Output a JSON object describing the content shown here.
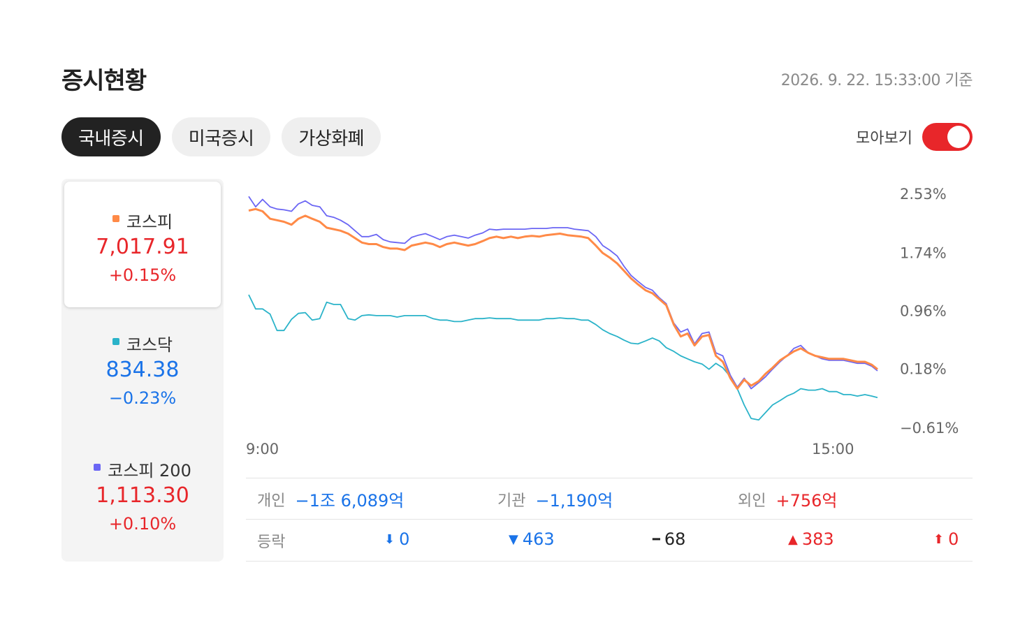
{
  "header": {
    "title": "증시현황",
    "timestamp": "2026. 9. 22. 15:33:00 기준"
  },
  "tabs": [
    {
      "label": "국내증시",
      "active": true
    },
    {
      "label": "미국증시",
      "active": false
    },
    {
      "label": "가상화폐",
      "active": false
    }
  ],
  "toggle": {
    "label": "모아보기",
    "on": true,
    "color": "#e8262a"
  },
  "colors": {
    "up": "#e8262a",
    "down": "#1a73e8",
    "kospi": "#ff8a47",
    "kosdaq": "#2ab3c9",
    "kospi200": "#6b66f4"
  },
  "indices": [
    {
      "name": "코스피",
      "value": "7,017.91",
      "change": "+0.15%",
      "direction": "up",
      "color": "#ff8a47",
      "selected": true
    },
    {
      "name": "코스닥",
      "value": "834.38",
      "change": "−0.23%",
      "direction": "down",
      "color": "#2ab3c9",
      "selected": false
    },
    {
      "name": "코스피 200",
      "value": "1,113.30",
      "change": "+0.10%",
      "direction": "up",
      "color": "#6b66f4",
      "selected": false
    }
  ],
  "investors": [
    {
      "label": "개인",
      "value": "−1조 6,089억",
      "direction": "down"
    },
    {
      "label": "기관",
      "value": "−1,190억",
      "direction": "down"
    },
    {
      "label": "외인",
      "value": "+756억",
      "direction": "up"
    }
  ],
  "advance_decline": {
    "label": "등락",
    "items": [
      {
        "icon": "arrow-down-icon",
        "glyph": "⬇",
        "value": "0",
        "direction": "down"
      },
      {
        "icon": "triangle-down-icon",
        "glyph": "▼",
        "value": "463",
        "direction": "down"
      },
      {
        "icon": "dash-icon",
        "glyph": "━",
        "value": "68",
        "direction": "flat"
      },
      {
        "icon": "triangle-up-icon",
        "glyph": "▲",
        "value": "383",
        "direction": "up"
      },
      {
        "icon": "arrow-up-icon",
        "glyph": "⬆",
        "value": "0",
        "direction": "up"
      }
    ]
  },
  "chart_data": {
    "type": "line",
    "x_ticks": [
      "9:00",
      "15:00"
    ],
    "y_ticks": [
      "2.53%",
      "1.74%",
      "0.96%",
      "0.18%",
      "−0.61%"
    ],
    "y_tick_values": [
      2.53,
      1.74,
      0.96,
      0.18,
      -0.61
    ],
    "ylim": [
      -0.61,
      2.53
    ],
    "xlim": [
      0,
      1
    ],
    "series": [
      {
        "id": "kosdaq",
        "color": "#2ab3c9",
        "points": [
          [
            0,
            1.18
          ],
          [
            0.011,
            0.99
          ],
          [
            0.022,
            0.99
          ],
          [
            0.034,
            0.92
          ],
          [
            0.045,
            0.7
          ],
          [
            0.056,
            0.7
          ],
          [
            0.068,
            0.85
          ],
          [
            0.079,
            0.93
          ],
          [
            0.09,
            0.94
          ],
          [
            0.101,
            0.84
          ],
          [
            0.113,
            0.86
          ],
          [
            0.124,
            1.08
          ],
          [
            0.135,
            1.05
          ],
          [
            0.146,
            1.05
          ],
          [
            0.158,
            0.86
          ],
          [
            0.169,
            0.84
          ],
          [
            0.18,
            0.9
          ],
          [
            0.191,
            0.91
          ],
          [
            0.203,
            0.9
          ],
          [
            0.214,
            0.9
          ],
          [
            0.225,
            0.9
          ],
          [
            0.236,
            0.88
          ],
          [
            0.248,
            0.9
          ],
          [
            0.259,
            0.9
          ],
          [
            0.27,
            0.9
          ],
          [
            0.281,
            0.9
          ],
          [
            0.293,
            0.86
          ],
          [
            0.304,
            0.84
          ],
          [
            0.315,
            0.84
          ],
          [
            0.327,
            0.82
          ],
          [
            0.338,
            0.82
          ],
          [
            0.349,
            0.84
          ],
          [
            0.36,
            0.86
          ],
          [
            0.372,
            0.86
          ],
          [
            0.383,
            0.87
          ],
          [
            0.394,
            0.86
          ],
          [
            0.405,
            0.86
          ],
          [
            0.417,
            0.86
          ],
          [
            0.428,
            0.84
          ],
          [
            0.439,
            0.84
          ],
          [
            0.45,
            0.84
          ],
          [
            0.462,
            0.84
          ],
          [
            0.473,
            0.86
          ],
          [
            0.484,
            0.86
          ],
          [
            0.495,
            0.87
          ],
          [
            0.507,
            0.86
          ],
          [
            0.518,
            0.86
          ],
          [
            0.529,
            0.84
          ],
          [
            0.54,
            0.84
          ],
          [
            0.552,
            0.78
          ],
          [
            0.563,
            0.71
          ],
          [
            0.574,
            0.66
          ],
          [
            0.586,
            0.62
          ],
          [
            0.597,
            0.57
          ],
          [
            0.608,
            0.53
          ],
          [
            0.619,
            0.52
          ],
          [
            0.631,
            0.56
          ],
          [
            0.642,
            0.6
          ],
          [
            0.653,
            0.56
          ],
          [
            0.664,
            0.47
          ],
          [
            0.676,
            0.42
          ],
          [
            0.687,
            0.36
          ],
          [
            0.698,
            0.32
          ],
          [
            0.709,
            0.28
          ],
          [
            0.721,
            0.25
          ],
          [
            0.732,
            0.18
          ],
          [
            0.743,
            0.26
          ],
          [
            0.754,
            0.2
          ],
          [
            0.766,
            0.08
          ],
          [
            0.777,
            -0.08
          ],
          [
            0.788,
            -0.3
          ],
          [
            0.799,
            -0.48
          ],
          [
            0.811,
            -0.5
          ],
          [
            0.822,
            -0.4
          ],
          [
            0.833,
            -0.3
          ],
          [
            0.845,
            -0.24
          ],
          [
            0.856,
            -0.18
          ],
          [
            0.867,
            -0.14
          ],
          [
            0.878,
            -0.08
          ],
          [
            0.89,
            -0.1
          ],
          [
            0.901,
            -0.1
          ],
          [
            0.912,
            -0.08
          ],
          [
            0.923,
            -0.12
          ],
          [
            0.935,
            -0.12
          ],
          [
            0.946,
            -0.16
          ],
          [
            0.957,
            -0.16
          ],
          [
            0.968,
            -0.18
          ],
          [
            0.98,
            -0.16
          ],
          [
            0.991,
            -0.18
          ],
          [
            1.0,
            -0.2
          ]
        ]
      },
      {
        "id": "kospi200",
        "color": "#6b66f4",
        "points": [
          [
            0,
            2.5
          ],
          [
            0.011,
            2.36
          ],
          [
            0.022,
            2.46
          ],
          [
            0.034,
            2.36
          ],
          [
            0.045,
            2.33
          ],
          [
            0.056,
            2.32
          ],
          [
            0.068,
            2.3
          ],
          [
            0.079,
            2.4
          ],
          [
            0.09,
            2.44
          ],
          [
            0.101,
            2.38
          ],
          [
            0.113,
            2.36
          ],
          [
            0.124,
            2.24
          ],
          [
            0.135,
            2.22
          ],
          [
            0.146,
            2.18
          ],
          [
            0.158,
            2.12
          ],
          [
            0.169,
            2.04
          ],
          [
            0.18,
            1.96
          ],
          [
            0.191,
            1.96
          ],
          [
            0.203,
            1.99
          ],
          [
            0.214,
            1.92
          ],
          [
            0.225,
            1.89
          ],
          [
            0.236,
            1.88
          ],
          [
            0.248,
            1.87
          ],
          [
            0.259,
            1.95
          ],
          [
            0.27,
            1.98
          ],
          [
            0.281,
            2.0
          ],
          [
            0.293,
            1.96
          ],
          [
            0.304,
            1.92
          ],
          [
            0.315,
            1.96
          ],
          [
            0.327,
            1.98
          ],
          [
            0.338,
            1.96
          ],
          [
            0.349,
            1.94
          ],
          [
            0.36,
            1.98
          ],
          [
            0.372,
            2.01
          ],
          [
            0.383,
            2.06
          ],
          [
            0.394,
            2.05
          ],
          [
            0.405,
            2.06
          ],
          [
            0.417,
            2.06
          ],
          [
            0.428,
            2.06
          ],
          [
            0.439,
            2.06
          ],
          [
            0.45,
            2.07
          ],
          [
            0.462,
            2.07
          ],
          [
            0.473,
            2.07
          ],
          [
            0.484,
            2.08
          ],
          [
            0.495,
            2.08
          ],
          [
            0.507,
            2.08
          ],
          [
            0.518,
            2.06
          ],
          [
            0.529,
            2.05
          ],
          [
            0.54,
            2.04
          ],
          [
            0.552,
            1.96
          ],
          [
            0.563,
            1.84
          ],
          [
            0.574,
            1.78
          ],
          [
            0.586,
            1.7
          ],
          [
            0.597,
            1.56
          ],
          [
            0.608,
            1.44
          ],
          [
            0.619,
            1.36
          ],
          [
            0.631,
            1.28
          ],
          [
            0.642,
            1.24
          ],
          [
            0.653,
            1.14
          ],
          [
            0.664,
            1.06
          ],
          [
            0.676,
            0.8
          ],
          [
            0.687,
            0.68
          ],
          [
            0.698,
            0.72
          ],
          [
            0.709,
            0.52
          ],
          [
            0.721,
            0.66
          ],
          [
            0.732,
            0.68
          ],
          [
            0.743,
            0.4
          ],
          [
            0.754,
            0.36
          ],
          [
            0.766,
            0.1
          ],
          [
            0.777,
            -0.06
          ],
          [
            0.788,
            0.06
          ],
          [
            0.799,
            -0.08
          ],
          [
            0.811,
            0.0
          ],
          [
            0.822,
            0.08
          ],
          [
            0.833,
            0.18
          ],
          [
            0.845,
            0.28
          ],
          [
            0.856,
            0.36
          ],
          [
            0.867,
            0.46
          ],
          [
            0.878,
            0.5
          ],
          [
            0.89,
            0.4
          ],
          [
            0.901,
            0.36
          ],
          [
            0.912,
            0.32
          ],
          [
            0.923,
            0.3
          ],
          [
            0.935,
            0.3
          ],
          [
            0.946,
            0.3
          ],
          [
            0.957,
            0.28
          ],
          [
            0.968,
            0.26
          ],
          [
            0.98,
            0.26
          ],
          [
            0.991,
            0.22
          ],
          [
            1.0,
            0.16
          ]
        ]
      },
      {
        "id": "kospi",
        "color": "#ff8a47",
        "points": [
          [
            0,
            2.31
          ],
          [
            0.011,
            2.33
          ],
          [
            0.022,
            2.3
          ],
          [
            0.034,
            2.2
          ],
          [
            0.045,
            2.18
          ],
          [
            0.056,
            2.16
          ],
          [
            0.068,
            2.12
          ],
          [
            0.079,
            2.2
          ],
          [
            0.09,
            2.24
          ],
          [
            0.101,
            2.2
          ],
          [
            0.113,
            2.16
          ],
          [
            0.124,
            2.08
          ],
          [
            0.135,
            2.06
          ],
          [
            0.146,
            2.04
          ],
          [
            0.158,
            2.0
          ],
          [
            0.169,
            1.94
          ],
          [
            0.18,
            1.88
          ],
          [
            0.191,
            1.86
          ],
          [
            0.203,
            1.86
          ],
          [
            0.214,
            1.82
          ],
          [
            0.225,
            1.8
          ],
          [
            0.236,
            1.8
          ],
          [
            0.248,
            1.78
          ],
          [
            0.259,
            1.84
          ],
          [
            0.27,
            1.86
          ],
          [
            0.281,
            1.88
          ],
          [
            0.293,
            1.86
          ],
          [
            0.304,
            1.82
          ],
          [
            0.315,
            1.86
          ],
          [
            0.327,
            1.88
          ],
          [
            0.338,
            1.86
          ],
          [
            0.349,
            1.84
          ],
          [
            0.36,
            1.86
          ],
          [
            0.372,
            1.9
          ],
          [
            0.383,
            1.94
          ],
          [
            0.394,
            1.96
          ],
          [
            0.405,
            1.94
          ],
          [
            0.417,
            1.96
          ],
          [
            0.428,
            1.94
          ],
          [
            0.439,
            1.96
          ],
          [
            0.45,
            1.97
          ],
          [
            0.462,
            1.96
          ],
          [
            0.473,
            1.98
          ],
          [
            0.484,
            1.99
          ],
          [
            0.495,
            2.0
          ],
          [
            0.507,
            1.98
          ],
          [
            0.518,
            1.97
          ],
          [
            0.529,
            1.96
          ],
          [
            0.54,
            1.94
          ],
          [
            0.552,
            1.84
          ],
          [
            0.563,
            1.74
          ],
          [
            0.574,
            1.68
          ],
          [
            0.586,
            1.6
          ],
          [
            0.597,
            1.5
          ],
          [
            0.608,
            1.4
          ],
          [
            0.619,
            1.32
          ],
          [
            0.631,
            1.24
          ],
          [
            0.642,
            1.2
          ],
          [
            0.653,
            1.12
          ],
          [
            0.664,
            1.04
          ],
          [
            0.676,
            0.78
          ],
          [
            0.687,
            0.62
          ],
          [
            0.698,
            0.66
          ],
          [
            0.709,
            0.5
          ],
          [
            0.721,
            0.62
          ],
          [
            0.732,
            0.64
          ],
          [
            0.743,
            0.36
          ],
          [
            0.754,
            0.28
          ],
          [
            0.766,
            0.06
          ],
          [
            0.777,
            -0.08
          ],
          [
            0.788,
            0.04
          ],
          [
            0.799,
            -0.04
          ],
          [
            0.811,
            0.02
          ],
          [
            0.822,
            0.12
          ],
          [
            0.833,
            0.2
          ],
          [
            0.845,
            0.3
          ],
          [
            0.856,
            0.36
          ],
          [
            0.867,
            0.42
          ],
          [
            0.878,
            0.46
          ],
          [
            0.89,
            0.4
          ],
          [
            0.901,
            0.36
          ],
          [
            0.912,
            0.34
          ],
          [
            0.923,
            0.32
          ],
          [
            0.935,
            0.32
          ],
          [
            0.946,
            0.32
          ],
          [
            0.957,
            0.3
          ],
          [
            0.968,
            0.28
          ],
          [
            0.98,
            0.28
          ],
          [
            0.991,
            0.24
          ],
          [
            1.0,
            0.18
          ]
        ]
      }
    ],
    "grid": false
  }
}
